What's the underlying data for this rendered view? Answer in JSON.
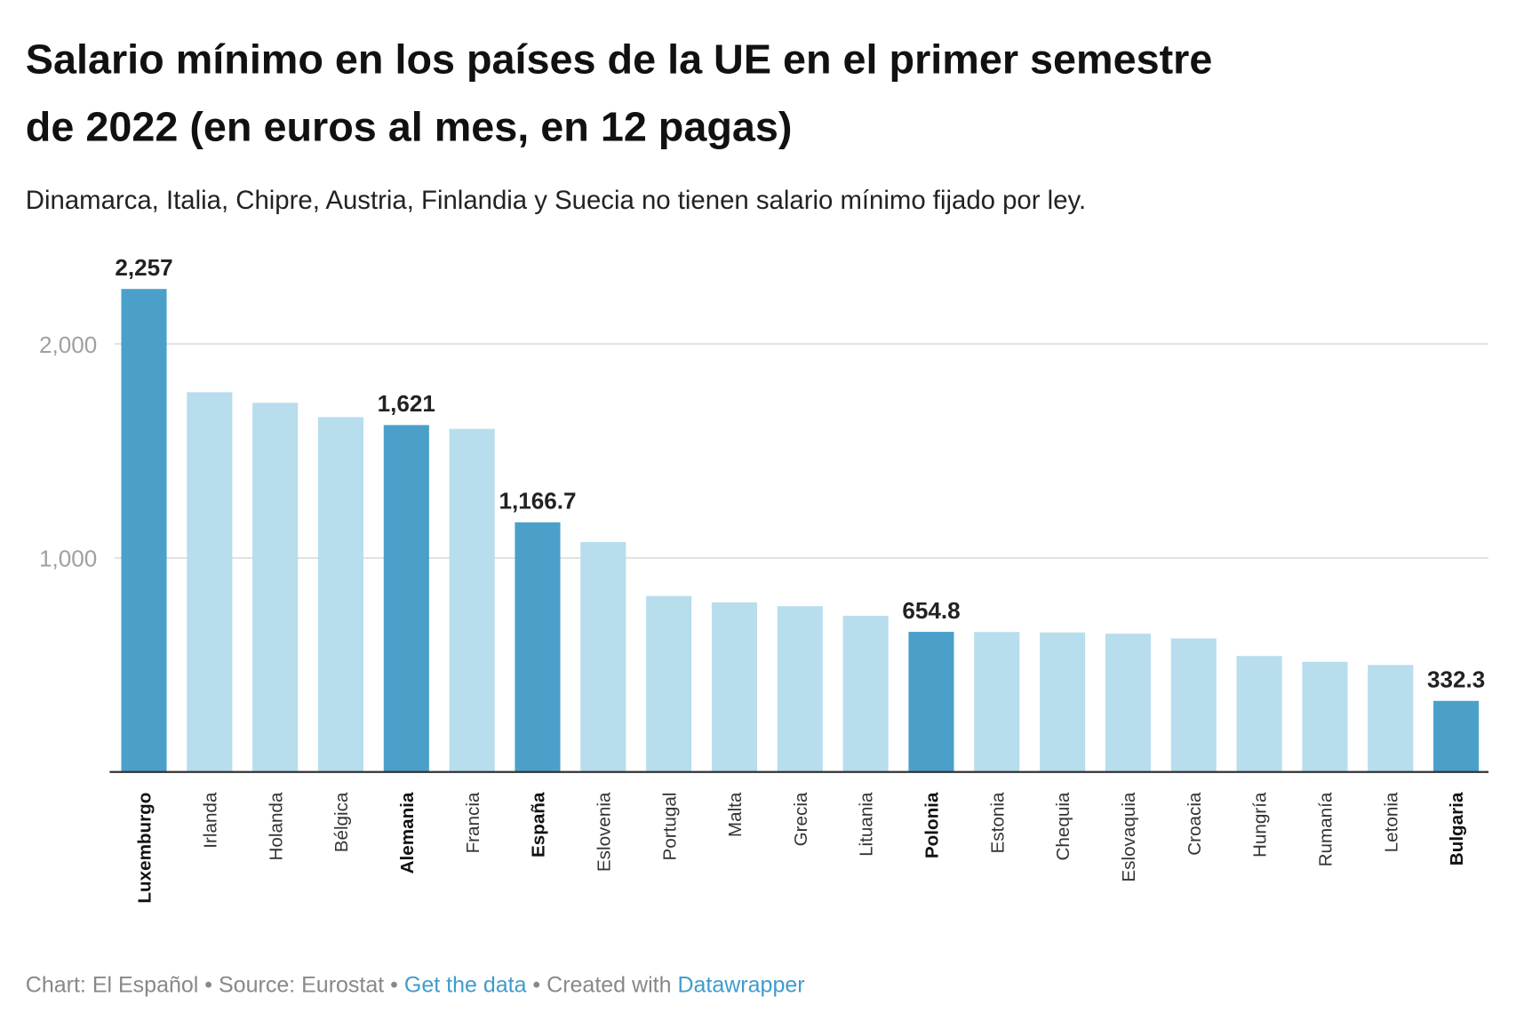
{
  "chart_data": {
    "type": "bar",
    "title_lines": [
      "Salario mínimo en los países de la UE en el primer semestre",
      "de 2022 (en euros al mes, en 12 pagas)"
    ],
    "subtitle": "Dinamarca, Italia, Chipre, Austria, Finlandia y Suecia no tienen salario mínimo fijado por ley.",
    "categories": [
      "Luxemburgo",
      "Irlanda",
      "Holanda",
      "Bélgica",
      "Alemania",
      "Francia",
      "España",
      "Eslovenia",
      "Portugal",
      "Malta",
      "Grecia",
      "Lituania",
      "Polonia",
      "Estonia",
      "Chequia",
      "Eslovaquia",
      "Croacia",
      "Hungría",
      "Rumanía",
      "Letonia",
      "Bulgaria"
    ],
    "values": [
      2257,
      1774.5,
      1725,
      1658.2,
      1621,
      1603.1,
      1166.7,
      1074.4,
      822.5,
      792.3,
      774.8,
      730,
      654.8,
      654,
      652,
      646,
      624,
      542,
      515,
      500,
      332.3
    ],
    "highlighted": [
      "Luxemburgo",
      "Alemania",
      "España",
      "Polonia",
      "Bulgaria"
    ],
    "data_labels": {
      "Luxemburgo": "2,257",
      "Alemania": "1,621",
      "España": "1,166.7",
      "Polonia": "654.8",
      "Bulgaria": "332.3"
    },
    "yticks": [
      {
        "value": 1000,
        "label": "1,000"
      },
      {
        "value": 2000,
        "label": "2,000"
      }
    ],
    "ylim": [
      0,
      2500
    ],
    "grid": true,
    "colors": {
      "highlight": "#4ba0ca",
      "default": "#b8dded"
    }
  },
  "footer": {
    "chart": "Chart: El Español",
    "sep1": " • ",
    "source": "Source: Eurostat",
    "sep2": " • ",
    "get_data": "Get the data",
    "sep3": " • ",
    "created": "Created with ",
    "datawrapper": "Datawrapper"
  }
}
